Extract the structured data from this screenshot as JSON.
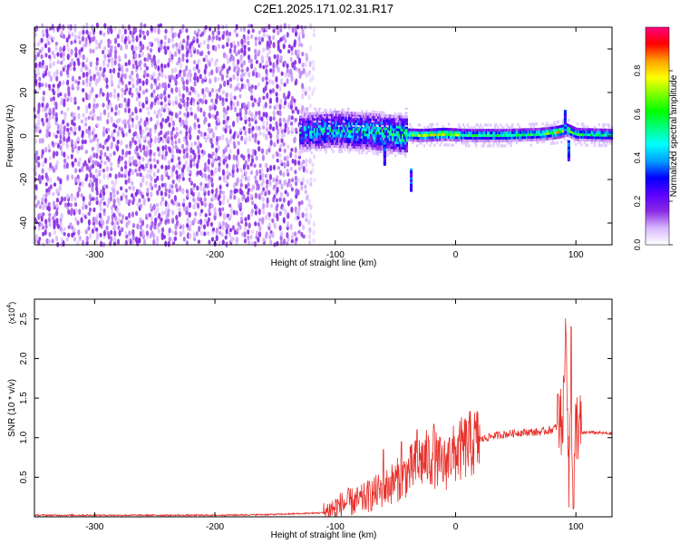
{
  "title": "C2E1.2025.171.02.31.R17",
  "chart_data": [
    {
      "type": "heatmap",
      "xlabel": "Height of straight line (km)",
      "ylabel": "Frequency (Hz)",
      "xlim": [
        -350,
        130
      ],
      "ylim": [
        -50,
        50
      ],
      "xticks": [
        -300,
        -200,
        -100,
        0,
        100
      ],
      "yticks": [
        -40,
        -20,
        0,
        20,
        40
      ],
      "colorbar": {
        "label": "Normalized spectral amplitude",
        "range": [
          0,
          1
        ],
        "ticks": [
          "0.0",
          "0.2",
          "0.4",
          "0.6",
          "0.8"
        ],
        "colors": [
          "#ffffff",
          "#d9b8ff",
          "#8a2be2",
          "#5a00ff",
          "#0000ff",
          "#00a0ff",
          "#00ffff",
          "#00ff80",
          "#00ff00",
          "#80ff00",
          "#ffff00",
          "#ffa000",
          "#ff0000",
          "#ff0080"
        ]
      },
      "features": {
        "noise_region_x": [
          -350,
          -130
        ],
        "signal_track": {
          "x": [
            -130,
            -100,
            -70,
            -50,
            -30,
            -10,
            10,
            40,
            70,
            85,
            92,
            100,
            130
          ],
          "freq": [
            2,
            3,
            2,
            1,
            0.5,
            1,
            0.5,
            0.5,
            1,
            2,
            3,
            1,
            0.5
          ],
          "amplitude": [
            0.45,
            0.5,
            0.55,
            0.6,
            0.75,
            0.8,
            0.6,
            0.6,
            0.6,
            0.85,
            0.7,
            0.6,
            0.55
          ]
        }
      }
    },
    {
      "type": "line",
      "xlabel": "Height of straight line (km)",
      "ylabel": "SNR (10 * v/v)",
      "y_multiplier": "(x10",
      "y_multiplier_exp": "4",
      "y_multiplier_close": ")",
      "xlim": [
        -350,
        130
      ],
      "ylim": [
        0,
        2.75
      ],
      "xticks": [
        -300,
        -200,
        -100,
        0,
        100
      ],
      "yticks": [
        "0.5",
        "1.0",
        "1.5",
        "2.0",
        "2.5"
      ],
      "series": [
        {
          "color": "#e8302a",
          "x": [
            -350,
            -300,
            -250,
            -200,
            -150,
            -110,
            -100,
            -90,
            -80,
            -70,
            -60,
            -50,
            -40,
            -30,
            -20,
            -10,
            0,
            10,
            20,
            30,
            40,
            50,
            60,
            70,
            80,
            85,
            90,
            92,
            94,
            96,
            98,
            100,
            105,
            110,
            120,
            130
          ],
          "y": [
            0.02,
            0.02,
            0.02,
            0.02,
            0.03,
            0.05,
            0.12,
            0.18,
            0.2,
            0.28,
            0.35,
            0.45,
            0.55,
            0.7,
            0.75,
            0.65,
            0.8,
            0.9,
            0.97,
            1.02,
            1.04,
            1.06,
            1.07,
            1.07,
            1.1,
            1.15,
            1.3,
            2.7,
            0.3,
            1.7,
            0.05,
            1.2,
            1.05,
            1.07,
            1.06,
            1.05
          ],
          "spikes": [
            [
              -60,
              0.85
            ],
            [
              -45,
              0.95
            ],
            [
              -32,
              1.1
            ],
            [
              -18,
              1.17
            ],
            [
              -5,
              1.0
            ],
            [
              85,
              1.55
            ],
            [
              90,
              1.7
            ],
            [
              96,
              2.4
            ],
            [
              98,
              0.1
            ]
          ]
        }
      ]
    }
  ]
}
